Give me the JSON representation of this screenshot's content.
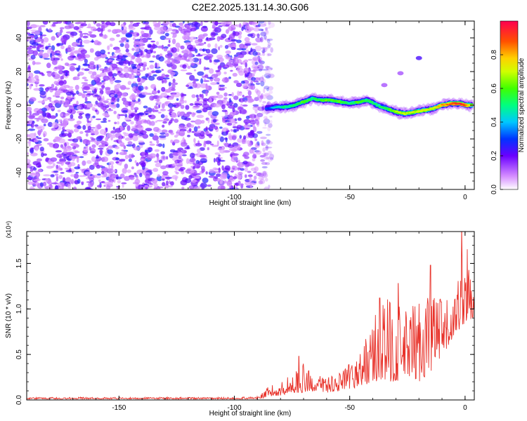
{
  "title": "C2E2.2025.131.14.30.G06",
  "chart_data": [
    {
      "type": "heatmap",
      "title": "",
      "xlabel": "Height of straight line (km)",
      "ylabel": "Frequency (Hz)",
      "xlim": [
        -190,
        4
      ],
      "ylim": [
        -50,
        50
      ],
      "xticks": [
        -150,
        -100,
        -50,
        0
      ],
      "yticks": [
        -40,
        -20,
        0,
        20,
        40
      ],
      "grid": false,
      "colorbar": {
        "label": "Normalized spectral amplitude",
        "range": [
          0,
          1
        ],
        "ticks": [
          0.0,
          0.2,
          0.4,
          0.6,
          0.8
        ]
      },
      "noise_region_x": [
        -190,
        -85
      ],
      "ridge": {
        "x": [
          -86,
          -82,
          -78,
          -74,
          -70,
          -66,
          -62,
          -58,
          -54,
          -50,
          -46,
          -42,
          -38,
          -34,
          -30,
          -26,
          -22,
          -18,
          -14,
          -10,
          -6,
          -2,
          0,
          3
        ],
        "freq": [
          -2,
          -1,
          -1,
          0,
          2,
          4,
          3,
          3,
          2,
          1,
          2,
          3,
          0,
          -2,
          -4,
          -5,
          -4,
          -3,
          -2,
          0,
          1,
          1,
          0,
          0
        ],
        "level": [
          0.3,
          0.4,
          0.5,
          0.5,
          0.6,
          0.5,
          0.6,
          0.6,
          0.6,
          0.5,
          0.6,
          0.55,
          0.5,
          0.55,
          0.65,
          0.7,
          0.7,
          0.75,
          0.7,
          0.8,
          0.9,
          0.95,
          0.9,
          0.7
        ]
      },
      "isolated_blobs": [
        {
          "x": -20,
          "freq": 28,
          "level": 0.15
        },
        {
          "x": -28,
          "freq": 19,
          "level": 0.05
        },
        {
          "x": -35,
          "freq": 12,
          "level": 0.05
        }
      ]
    },
    {
      "type": "line",
      "title": "",
      "xlabel": "Height of straight line (km)",
      "ylabel": "SNR (10 * v/v)",
      "yscale_label": "(x10⁴)",
      "xlim": [
        -190,
        4
      ],
      "ylim": [
        0,
        1.85
      ],
      "xticks": [
        -150,
        -100,
        -50,
        0
      ],
      "yticks": [
        0.0,
        0.5,
        1.0,
        1.5
      ],
      "grid": false,
      "series": [
        {
          "color": "#e8322a",
          "envelope": {
            "x": [
              -190,
              -100,
              -90,
              -85,
              -80,
              -75,
              -70,
              -65,
              -60,
              -55,
              -50,
              -45,
              -40,
              -35,
              -30,
              -25,
              -20,
              -15,
              -10,
              -5,
              0,
              4
            ],
            "low": [
              0.01,
              0.01,
              0.01,
              0.03,
              0.05,
              0.08,
              0.08,
              0.1,
              0.08,
              0.1,
              0.12,
              0.15,
              0.2,
              0.2,
              0.2,
              0.25,
              0.2,
              0.3,
              0.45,
              0.7,
              0.85,
              0.9
            ],
            "high": [
              0.03,
              0.03,
              0.04,
              0.15,
              0.2,
              0.3,
              0.4,
              0.25,
              0.3,
              0.3,
              0.4,
              0.6,
              0.9,
              1.15,
              1.1,
              1.0,
              1.15,
              1.45,
              1.1,
              1.1,
              1.85,
              1.12
            ]
          },
          "peaks": [
            {
              "x": -1.5,
              "y": 1.85
            },
            {
              "x": -15,
              "y": 1.48
            },
            {
              "x": -29,
              "y": 1.28
            },
            {
              "x": -37,
              "y": 1.12
            },
            {
              "x": -72,
              "y": 0.48
            }
          ]
        }
      ]
    }
  ]
}
